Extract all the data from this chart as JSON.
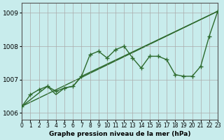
{
  "title": "Graphe pression niveau de la mer (hPa)",
  "xlabel": "Graphe pression niveau de la mer (hPa)",
  "ylabel": "",
  "xlim": [
    0,
    23
  ],
  "ylim": [
    1005.8,
    1009.3
  ],
  "yticks": [
    1006,
    1007,
    1008,
    1009
  ],
  "xtick_labels": [
    "0",
    "1",
    "2",
    "3",
    "4",
    "5",
    "6",
    "7",
    "8",
    "9",
    "10",
    "11",
    "12",
    "13",
    "14",
    "15",
    "16",
    "17",
    "18",
    "19",
    "20",
    "21",
    "22",
    "23"
  ],
  "bg_color": "#c8ecec",
  "grid_color": "#aaaaaa",
  "line_color": "#2d6a2d",
  "marker_color": "#2d6a2d",
  "line1_x": [
    0,
    1,
    2,
    3,
    4,
    5,
    6,
    7,
    8,
    9,
    10,
    11,
    12,
    13,
    14,
    15,
    16,
    17,
    18,
    19,
    20,
    21,
    22,
    23
  ],
  "line1_y": [
    1006.2,
    1006.55,
    1006.7,
    1006.8,
    1006.65,
    1006.75,
    1006.8,
    1007.1,
    1007.75,
    1007.85,
    1007.65,
    1007.9,
    1008.0,
    1007.65,
    1007.35,
    1007.7,
    1007.7,
    1007.6,
    1007.15,
    1007.1,
    1007.1,
    1007.4,
    1008.3,
    1009.05
  ],
  "line2_x": [
    0,
    3,
    4,
    5,
    6,
    7,
    23
  ],
  "line2_y": [
    1006.2,
    1006.8,
    1006.55,
    1006.75,
    1006.8,
    1007.1,
    1009.05
  ],
  "line3_x": [
    0,
    23
  ],
  "line3_y": [
    1006.2,
    1009.05
  ]
}
